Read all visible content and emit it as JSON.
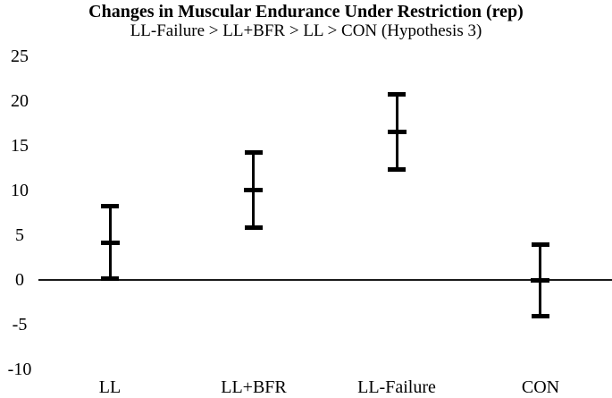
{
  "figure": {
    "title": "Changes in Muscular Endurance Under Restriction (rep)",
    "subtitle": "LL-Failure > LL+BFR > LL > CON (Hypothesis 3)"
  },
  "chart_data": {
    "type": "scatter",
    "variant": "mean-markers-with-error-bars",
    "title": "Changes in Muscular Endurance Under Restriction (rep)",
    "subtitle": "LL-Failure > LL+BFR > LL > CON (Hypothesis 3)",
    "categories": [
      "LL",
      "LL+BFR",
      "LL-Failure",
      "CON"
    ],
    "series": [
      {
        "name": "mean",
        "values": [
          4.2,
          10.1,
          16.6,
          0.0
        ]
      },
      {
        "name": "upper_error",
        "values": [
          8.3,
          14.3,
          20.8,
          4.0
        ]
      },
      {
        "name": "lower_error",
        "values": [
          0.2,
          5.9,
          12.4,
          -4.0
        ]
      }
    ],
    "xlabel": "",
    "ylabel": "",
    "ylim": [
      -10,
      25
    ],
    "yticks": [
      25,
      20,
      15,
      10,
      5,
      0,
      -5,
      -10
    ],
    "grid": false,
    "legend": false,
    "zero_line": true,
    "colors": {
      "marks": "#000000",
      "text": "#000000",
      "axis_line": "#1a1a1a",
      "background": "#ffffff"
    }
  }
}
